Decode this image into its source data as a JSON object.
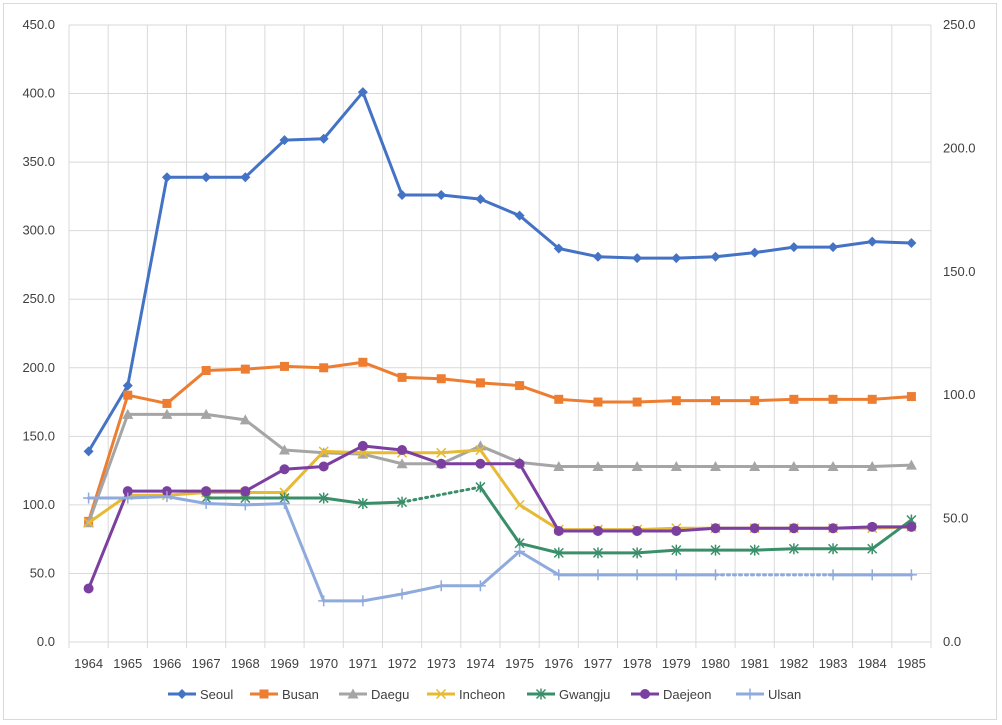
{
  "chart_data": {
    "type": "line",
    "categories": [
      "1964",
      "1965",
      "1966",
      "1967",
      "1968",
      "1969",
      "1970",
      "1971",
      "1972",
      "1973",
      "1974",
      "1975",
      "1976",
      "1977",
      "1978",
      "1979",
      "1980",
      "1981",
      "1982",
      "1983",
      "1984",
      "1985"
    ],
    "y_left": {
      "min": 0,
      "max": 450,
      "step": 50,
      "tick_labels": [
        "0.0",
        "50.0",
        "100.0",
        "150.0",
        "200.0",
        "250.0",
        "300.0",
        "350.0",
        "400.0",
        "450.0"
      ]
    },
    "y_right": {
      "min": 0,
      "max": 250,
      "step": 50,
      "tick_labels": [
        "0.0",
        "50.0",
        "100.0",
        "150.0",
        "200.0",
        "250.0"
      ]
    },
    "grid": true,
    "legend_position": "bottom",
    "series": [
      {
        "name": "Seoul",
        "axis": "left",
        "color": "#4472C4",
        "marker": "diamond",
        "values": [
          139,
          187,
          339,
          339,
          339,
          366,
          367,
          401,
          326,
          326,
          323,
          311,
          287,
          281,
          280,
          280,
          281,
          284,
          288,
          288,
          292,
          291
        ]
      },
      {
        "name": "Busan",
        "axis": "left",
        "color": "#ED7D31",
        "marker": "square",
        "values": [
          88,
          180,
          174,
          198,
          199,
          201,
          200,
          204,
          193,
          192,
          189,
          187,
          177,
          175,
          175,
          176,
          176,
          176,
          177,
          177,
          177,
          179
        ]
      },
      {
        "name": "Daegu",
        "axis": "left",
        "color": "#A5A5A5",
        "marker": "triangle",
        "values": [
          87,
          166,
          166,
          166,
          162,
          140,
          138,
          137,
          130,
          130,
          143,
          131,
          128,
          128,
          128,
          128,
          128,
          128,
          128,
          128,
          128,
          129
        ]
      },
      {
        "name": "Incheon",
        "axis": "left",
        "color": "#E7BA36",
        "marker": "x",
        "values": [
          87,
          107,
          107,
          109,
          109,
          109,
          139,
          138,
          138,
          138,
          140,
          100,
          82,
          82,
          82,
          83,
          83,
          83,
          83,
          83,
          83,
          84
        ]
      },
      {
        "name": "Gwangju",
        "axis": "left",
        "color": "#3A8F6A",
        "marker": "star",
        "values": [
          null,
          null,
          null,
          105,
          105,
          105,
          105,
          101,
          102,
          null,
          113,
          72,
          65,
          65,
          65,
          67,
          67,
          67,
          68,
          68,
          68,
          89
        ],
        "dotted_gaps": [
          [
            8,
            10
          ]
        ]
      },
      {
        "name": "Daejeon",
        "axis": "left",
        "color": "#7B3FA0",
        "marker": "circle",
        "values": [
          39,
          110,
          110,
          110,
          110,
          126,
          128,
          143,
          140,
          130,
          130,
          130,
          81,
          81,
          81,
          81,
          83,
          83,
          83,
          83,
          84,
          84
        ]
      },
      {
        "name": "Ulsan",
        "axis": "left",
        "color": "#8FAADC",
        "marker": "plus",
        "values": [
          105,
          105,
          106,
          101,
          100,
          101,
          30,
          30,
          35,
          41,
          41,
          66,
          49,
          49,
          49,
          49,
          49,
          null,
          null,
          49,
          49,
          49
        ],
        "dotted_gaps": [
          [
            16,
            19
          ]
        ]
      }
    ]
  }
}
